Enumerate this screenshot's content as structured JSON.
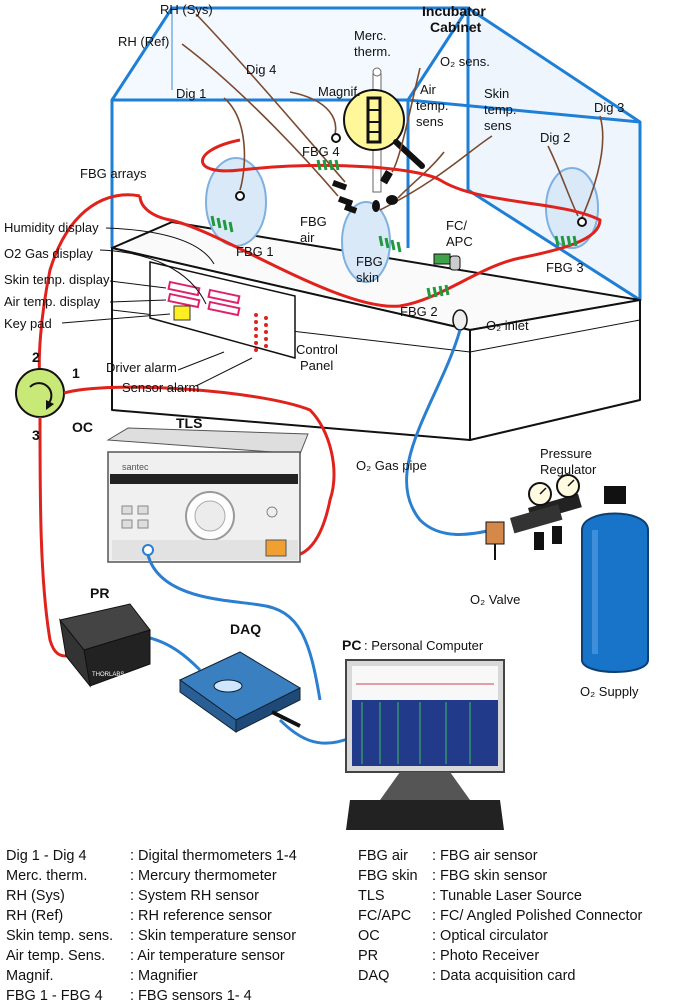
{
  "diagram": {
    "labels": {
      "rh_sys": "RH (Sys)",
      "rh_ref": "RH (Ref)",
      "incubator_cabinet_1": "Incubator",
      "incubator_cabinet_2": "Cabinet",
      "merc_therm_1": "Merc.",
      "merc_therm_2": "therm.",
      "o2_sens": "O₂ sens.",
      "dig4": "Dig 4",
      "magnif": "Magnif.",
      "dig1": "Dig 1",
      "air_temp_1": "Air",
      "air_temp_2": "temp.",
      "air_temp_3": "sens",
      "skin_temp_1": "Skin",
      "skin_temp_2": "temp.",
      "skin_temp_3": "sens",
      "dig3": "Dig 3",
      "dig2": "Dig 2",
      "fbg_arrays": "FBG arrays",
      "fbg4": "FBG 4",
      "fbg1": "FBG 1",
      "fbg_air_1": "FBG",
      "fbg_air_2": "air",
      "fbg_skin_1": "FBG",
      "fbg_skin_2": "skin",
      "fc_apc_1": "FC/",
      "fc_apc_2": "APC",
      "fbg3": "FBG 3",
      "fbg2": "FBG 2",
      "o2_inlet": "O₂ inlet",
      "humidity_display": "Humidity display",
      "o2_gas_display": "O2 Gas display",
      "skin_temp_display": "Skin temp. display",
      "air_temp_display": "Air temp. display",
      "key_pad": "Key pad",
      "port2": "2",
      "port1": "1",
      "port3": "3",
      "oc": "OC",
      "driver_alarm": "Driver alarm",
      "sensor_alarm": "Sensor alarm",
      "control_panel_1": "Control",
      "control_panel_2": "Panel",
      "tls": "TLS",
      "santec": "santec",
      "o2_gas_pipe": "O₂ Gas pipe",
      "pressure_regulator_1": "Pressure",
      "pressure_regulator_2": "Regulator",
      "o2_valve": "O₂ Valve",
      "o2_supply": "O₂ Supply",
      "pr": "PR",
      "thorlabs": "THORLABS",
      "daq": "DAQ",
      "pc": "PC",
      "pc_desc": ": Personal Computer"
    },
    "colors": {
      "cabinet": "#1e7fd6",
      "fiber": "#e0221d",
      "cable": "#2a7fd0",
      "fbg": "#1f9a3c",
      "sensor_wire": "#7a4a30",
      "circulator": "#c8e878",
      "bottle": "#1874c8"
    }
  },
  "legend": {
    "left": [
      {
        "term": "Dig 1 - Dig 4",
        "def": ":   Digital thermometers 1-4"
      },
      {
        "term": "Merc. therm.",
        "def": ":   Mercury thermometer"
      },
      {
        "term": "RH (Sys)",
        "def": ":  System RH sensor"
      },
      {
        "term": "RH (Ref)",
        "def": ":  RH reference sensor"
      },
      {
        "term": "Skin temp. sens.",
        "def": ":  Skin temperature sensor"
      },
      {
        "term": "Air temp. Sens.",
        "def": ":  Air temperature sensor"
      },
      {
        "term": "Magnif.",
        "def": ":  Magnifier"
      },
      {
        "term": "FBG 1  - FBG 4",
        "def": ":  FBG sensors 1- 4"
      }
    ],
    "right": [
      {
        "term": "FBG air",
        "def": ": FBG air sensor"
      },
      {
        "term": "FBG skin",
        "def": ": FBG skin sensor"
      },
      {
        "term": "TLS",
        "def": ": Tunable Laser Source"
      },
      {
        "term": "FC/APC",
        "def": ": FC/ Angled Polished Connector"
      },
      {
        "term": "OC",
        "def": ": Optical circulator"
      },
      {
        "term": "PR",
        "def": ": Photo Receiver"
      },
      {
        "term": "DAQ",
        "def": ": Data acquisition card"
      }
    ]
  }
}
